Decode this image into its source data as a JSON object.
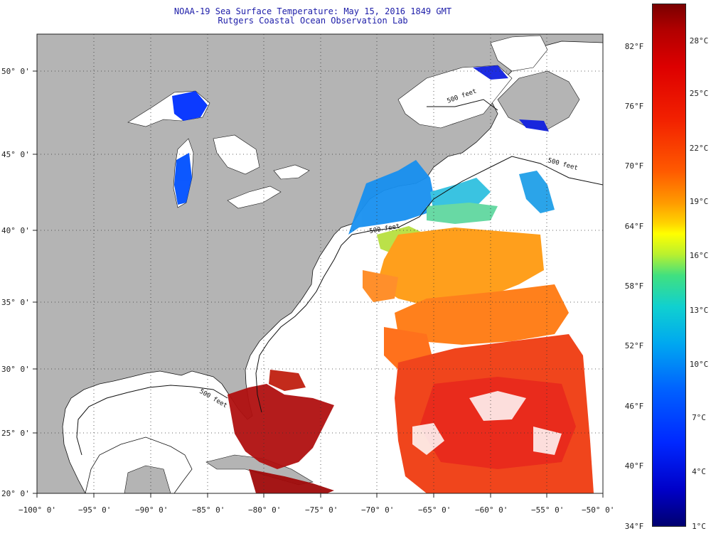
{
  "title": {
    "line1": "NOAA-19 Sea Surface Temperature:  May 15, 2016 1849 GMT",
    "line2": "Rutgers Coastal Ocean Observation Lab"
  },
  "axes": {
    "lat_labels": [
      "50° 0'",
      "45° 0'",
      "40° 0'",
      "35° 0'",
      "30° 0'",
      "25° 0'",
      "20° 0'"
    ],
    "lon_labels": [
      "−100° 0'",
      "−95° 0'",
      "−90° 0'",
      "−85° 0'",
      "−80° 0'",
      "−75° 0'",
      "−70° 0'",
      "−65° 0'",
      "−60° 0'",
      "−55° 0'",
      "−50° 0'"
    ]
  },
  "bathymetry_labels": [
    "500 feet",
    "500 feet",
    "500 feet",
    "500 feet"
  ],
  "colorbar": {
    "fahrenheit": [
      "82°F",
      "76°F",
      "70°F",
      "64°F",
      "58°F",
      "52°F",
      "46°F",
      "40°F",
      "34°F"
    ],
    "celsius": [
      "28°C",
      "25°C",
      "22°C",
      "19°C",
      "16°C",
      "13°C",
      "10°C",
      "7°C",
      "4°C",
      "1°C"
    ]
  },
  "colors": {
    "land": "#b4b4b4",
    "ocean_nodata": "#ffffff",
    "title_text": "#1c1ca8",
    "grid": "#333333"
  }
}
